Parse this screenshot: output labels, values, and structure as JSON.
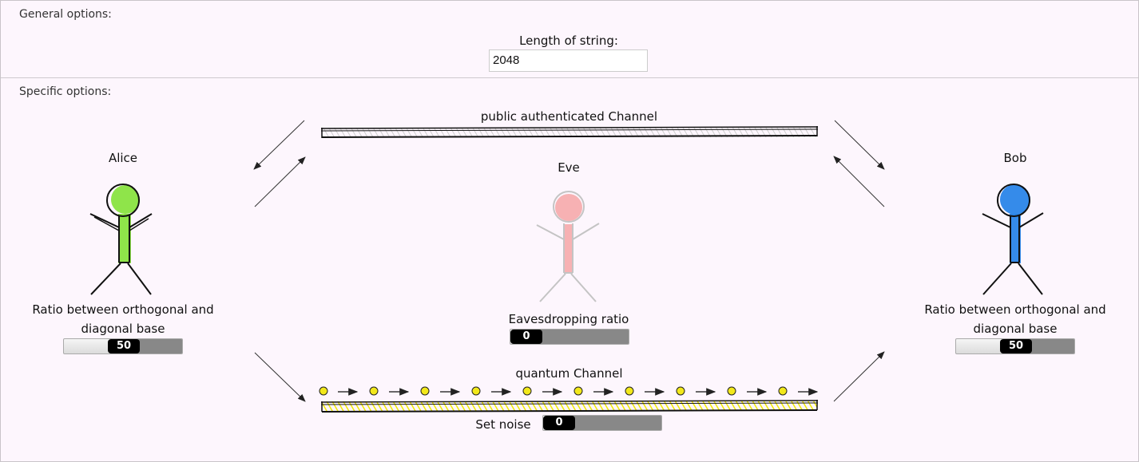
{
  "general": {
    "title": "General options:",
    "length_label": "Length of string:",
    "length_value": "2048"
  },
  "specific": {
    "title": "Specific options:"
  },
  "channels": {
    "public_label": "public authenticated Channel",
    "quantum_label": "quantum Channel"
  },
  "alice": {
    "name": "Alice",
    "ratio_label_line1": "Ratio between orthogonal and",
    "ratio_label_line2": "diagonal base",
    "ratio_value": 50,
    "color": "#7be02a"
  },
  "bob": {
    "name": "Bob",
    "ratio_label_line1": "Ratio between orthogonal and",
    "ratio_label_line2": "diagonal base",
    "ratio_value": 50,
    "color": "#1f7fe8"
  },
  "eve": {
    "name": "Eve",
    "eavesdrop_label": "Eavesdropping ratio",
    "eavesdrop_value": 0,
    "color": "#f5a0a0"
  },
  "noise": {
    "label": "Set noise",
    "value": 0
  },
  "colors": {
    "quantum_channel": "#f5f000",
    "photon": "#f2e81a"
  }
}
